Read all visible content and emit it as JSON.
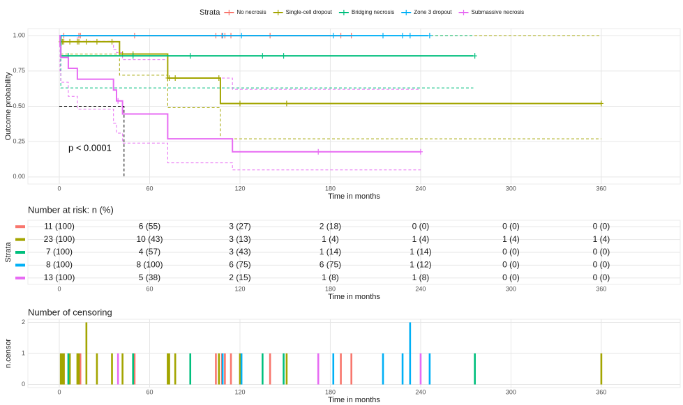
{
  "chart_data": [
    {
      "type": "step",
      "legend_title": "Strata",
      "x_label": "Time in months",
      "y_label": "Outcome probability",
      "annotation": "p < 0.0001",
      "median": {
        "time": 43,
        "probability": 0.5
      },
      "xlim": [
        -20.85,
        412.4
      ],
      "xticks": [
        0,
        60,
        120,
        180,
        240,
        300,
        360
      ],
      "ylim": [
        -0.05,
        1.05
      ],
      "yticks": [
        {
          "value": 0,
          "label": "0.00"
        },
        {
          "value": 0.25,
          "label": "0.25"
        },
        {
          "value": 0.5,
          "label": "0.50"
        },
        {
          "value": 0.75,
          "label": "0.75"
        },
        {
          "value": 1,
          "label": "1.00"
        }
      ],
      "grid": true,
      "series": [
        {
          "name": "No necrosis",
          "color": "#F8766D",
          "x": [
            0,
            194
          ],
          "values": [
            1,
            1
          ]
        },
        {
          "name": "Single-cell dropout",
          "color": "#A3A500",
          "x": [
            0,
            1,
            40,
            72,
            107,
            360
          ],
          "values": [
            1,
            0.957,
            0.87,
            0.7,
            0.52,
            0.52
          ],
          "upper": [
            1,
            1,
            1,
            1,
            1,
            1
          ],
          "lower": [
            1,
            0.87,
            0.72,
            0.49,
            0.27,
            0.27
          ]
        },
        {
          "name": "Bridging necrosis",
          "color": "#00BF7D",
          "x": [
            0,
            1,
            275
          ],
          "values": [
            1,
            0.857,
            0.857
          ],
          "upper": [
            1,
            1,
            1
          ],
          "lower": [
            1,
            0.63,
            0.63
          ]
        },
        {
          "name": "Zone 3 dropout",
          "color": "#00B0F6",
          "x": [
            0,
            245
          ],
          "values": [
            1,
            1
          ]
        },
        {
          "name": "Submassive necrosis",
          "color": "#E76BF3",
          "x": [
            0,
            0.5,
            1,
            6,
            12,
            36,
            38,
            42,
            72,
            115,
            240
          ],
          "values": [
            1,
            0.923,
            0.846,
            0.769,
            0.692,
            0.615,
            0.538,
            0.446,
            0.27,
            0.178,
            0.178
          ],
          "upper": [
            1,
            1,
            1,
            1,
            0.96,
            0.9,
            0.88,
            0.83,
            0.7,
            0.62,
            0.62
          ],
          "lower": [
            1,
            0.75,
            0.67,
            0.57,
            0.48,
            0.38,
            0.31,
            0.24,
            0.1,
            0.05,
            0.05
          ]
        }
      ]
    },
    {
      "type": "table",
      "title": "Number at risk: n (%)",
      "x_label": "Time in months",
      "y_label": "Strata",
      "xlim": [
        -20.85,
        412.4
      ],
      "xticks": [
        0,
        60,
        120,
        180,
        240,
        300,
        360
      ],
      "rows": [
        {
          "color": "#F8766D",
          "values": [
            11,
            6,
            3,
            2,
            0,
            0,
            0
          ],
          "value_labels": [
            "11 (100)",
            "6 (55)",
            "3 (27)",
            "2 (18)",
            "0 (0)",
            "0 (0)",
            "0 (0)"
          ]
        },
        {
          "color": "#A3A500",
          "values": [
            23,
            10,
            3,
            1,
            1,
            1,
            1
          ],
          "value_labels": [
            "23 (100)",
            "10 (43)",
            "3 (13)",
            "1 (4)",
            "1 (4)",
            "1 (4)",
            "1 (4)"
          ]
        },
        {
          "color": "#00BF7D",
          "values": [
            7,
            4,
            3,
            1,
            1,
            0,
            0
          ],
          "value_labels": [
            "7 (100)",
            "4 (57)",
            "3 (43)",
            "1 (14)",
            "1 (14)",
            "0 (0)",
            "0 (0)"
          ]
        },
        {
          "color": "#00B0F6",
          "values": [
            8,
            8,
            6,
            6,
            1,
            0,
            0
          ],
          "value_labels": [
            "8 (100)",
            "8 (100)",
            "6 (75)",
            "6 (75)",
            "1 (12)",
            "0 (0)",
            "0 (0)"
          ]
        },
        {
          "color": "#E76BF3",
          "values": [
            13,
            5,
            2,
            1,
            1,
            0,
            0
          ],
          "value_labels": [
            "13 (100)",
            "5 (38)",
            "2 (15)",
            "1 (8)",
            "1 (8)",
            "0 (0)",
            "0 (0)"
          ]
        }
      ]
    },
    {
      "type": "bar",
      "title": "Number of censoring",
      "x_label": "Time in months",
      "y_label": "n.censor",
      "xlim": [
        -20.85,
        412.4
      ],
      "xticks": [
        0,
        60,
        120,
        180,
        240,
        300,
        360
      ],
      "ylim": [
        -0.1,
        2.1
      ],
      "yticks": [
        0,
        1,
        2
      ],
      "series": [
        {
          "color": "#F8766D",
          "x": [
            3,
            13,
            14,
            50,
            104,
            108,
            110,
            114,
            140,
            187,
            194
          ],
          "values": [
            1,
            1,
            1,
            1,
            1,
            1,
            1,
            1,
            1,
            1,
            1
          ]
        },
        {
          "color": "#A3A500",
          "x": [
            1,
            2,
            3,
            7,
            12,
            13,
            18,
            25,
            35,
            42,
            49,
            72,
            73,
            77,
            106,
            120,
            151,
            360
          ],
          "values": [
            1,
            1,
            1,
            1,
            1,
            1,
            2,
            1,
            1,
            1,
            1,
            1,
            1,
            1,
            1,
            1,
            1,
            1
          ]
        },
        {
          "color": "#00BF7D",
          "x": [
            6,
            49,
            87,
            135,
            149,
            276
          ],
          "values": [
            1,
            1,
            1,
            1,
            1,
            1
          ]
        },
        {
          "color": "#00B0F6",
          "x": [
            108.5,
            121,
            182,
            215,
            228,
            233,
            246
          ],
          "values": [
            1,
            1,
            1,
            1,
            1,
            2,
            1
          ]
        },
        {
          "color": "#E76BF3",
          "x": [
            39,
            172,
            240
          ],
          "values": [
            1,
            1,
            1
          ]
        }
      ]
    }
  ]
}
